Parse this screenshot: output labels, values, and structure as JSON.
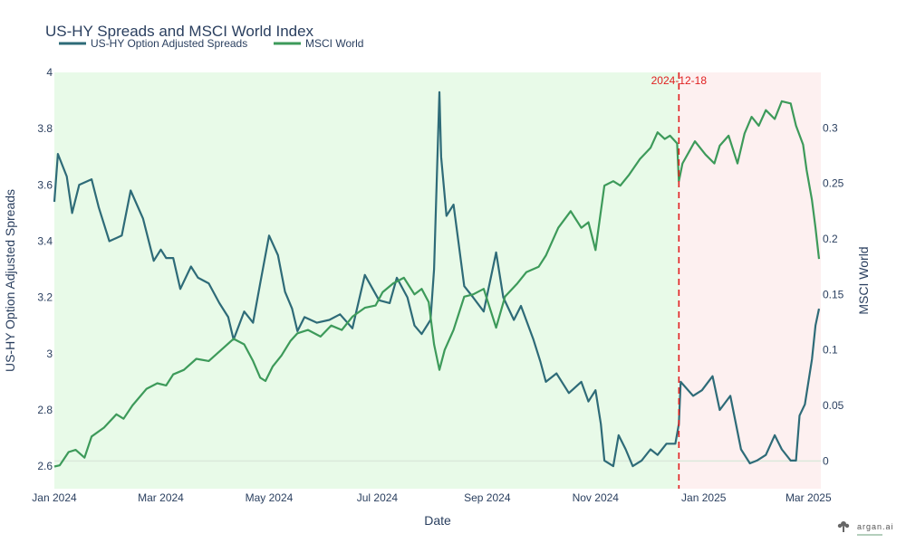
{
  "chart_data": {
    "type": "line",
    "title": "US-HY Spreads and MSCI World Index",
    "xlabel": "Date",
    "ylabel_left": "US-HY Option Adjusted Spreads",
    "ylabel_right": "MSCI World",
    "x_range": [
      "2024-01-01",
      "2025-03-08"
    ],
    "y_left_range": [
      2.52,
      4.0
    ],
    "y_right_range": [
      -0.025,
      0.35
    ],
    "x_ticks": [
      {
        "label": "Jan 2024",
        "date": "2024-01-01"
      },
      {
        "label": "Mar 2024",
        "date": "2024-03-01"
      },
      {
        "label": "May 2024",
        "date": "2024-05-01"
      },
      {
        "label": "Jul 2024",
        "date": "2024-07-01"
      },
      {
        "label": "Sep 2024",
        "date": "2024-09-01"
      },
      {
        "label": "Nov 2024",
        "date": "2024-11-01"
      },
      {
        "label": "Jan 2025",
        "date": "2025-01-01"
      },
      {
        "label": "Mar 2025",
        "date": "2025-03-01"
      }
    ],
    "y_left_ticks": [
      "2.6",
      "2.8",
      "3",
      "3.2",
      "3.4",
      "3.6",
      "3.8",
      "4"
    ],
    "y_right_ticks": [
      "0",
      "0.05",
      "0.1",
      "0.15",
      "0.2",
      "0.25",
      "0.3"
    ],
    "legend": "top-left, horizontal",
    "regions": [
      {
        "from": "2024-01-01",
        "to": "2024-12-18",
        "color": "#e8fae8"
      },
      {
        "from": "2024-12-18",
        "to": "2025-03-08",
        "color": "#fdf0f0"
      }
    ],
    "annotations": [
      {
        "date": "2024-12-18",
        "label": "2024-12-18",
        "style": "dashed",
        "color": "#e02020"
      }
    ],
    "series": [
      {
        "name": "US-HY Option Adjusted Spreads",
        "axis": "left",
        "color": "#2e6b78",
        "points": [
          [
            "2024-01-01",
            3.54
          ],
          [
            "2024-01-03",
            3.71
          ],
          [
            "2024-01-08",
            3.63
          ],
          [
            "2024-01-11",
            3.5
          ],
          [
            "2024-01-15",
            3.6
          ],
          [
            "2024-01-22",
            3.62
          ],
          [
            "2024-01-26",
            3.52
          ],
          [
            "2024-02-01",
            3.4
          ],
          [
            "2024-02-08",
            3.42
          ],
          [
            "2024-02-13",
            3.58
          ],
          [
            "2024-02-20",
            3.48
          ],
          [
            "2024-02-26",
            3.33
          ],
          [
            "2024-03-01",
            3.37
          ],
          [
            "2024-03-04",
            3.34
          ],
          [
            "2024-03-08",
            3.34
          ],
          [
            "2024-03-12",
            3.23
          ],
          [
            "2024-03-18",
            3.31
          ],
          [
            "2024-03-22",
            3.27
          ],
          [
            "2024-03-28",
            3.25
          ],
          [
            "2024-04-03",
            3.18
          ],
          [
            "2024-04-08",
            3.13
          ],
          [
            "2024-04-11",
            3.05
          ],
          [
            "2024-04-17",
            3.15
          ],
          [
            "2024-04-22",
            3.11
          ],
          [
            "2024-04-26",
            3.25
          ],
          [
            "2024-05-01",
            3.42
          ],
          [
            "2024-05-06",
            3.35
          ],
          [
            "2024-05-10",
            3.22
          ],
          [
            "2024-05-14",
            3.16
          ],
          [
            "2024-05-17",
            3.08
          ],
          [
            "2024-05-21",
            3.13
          ],
          [
            "2024-05-28",
            3.11
          ],
          [
            "2024-06-04",
            3.12
          ],
          [
            "2024-06-10",
            3.14
          ],
          [
            "2024-06-17",
            3.09
          ],
          [
            "2024-06-24",
            3.28
          ],
          [
            "2024-07-02",
            3.19
          ],
          [
            "2024-07-08",
            3.18
          ],
          [
            "2024-07-12",
            3.27
          ],
          [
            "2024-07-18",
            3.2
          ],
          [
            "2024-07-22",
            3.1
          ],
          [
            "2024-07-26",
            3.07
          ],
          [
            "2024-07-31",
            3.12
          ],
          [
            "2024-08-02",
            3.3
          ],
          [
            "2024-08-05",
            3.93
          ],
          [
            "2024-08-06",
            3.7
          ],
          [
            "2024-08-09",
            3.49
          ],
          [
            "2024-08-13",
            3.53
          ],
          [
            "2024-08-19",
            3.24
          ],
          [
            "2024-08-24",
            3.2
          ],
          [
            "2024-08-30",
            3.15
          ],
          [
            "2024-09-06",
            3.36
          ],
          [
            "2024-09-10",
            3.2
          ],
          [
            "2024-09-16",
            3.12
          ],
          [
            "2024-09-20",
            3.17
          ],
          [
            "2024-09-27",
            3.05
          ],
          [
            "2024-10-01",
            2.97
          ],
          [
            "2024-10-04",
            2.9
          ],
          [
            "2024-10-10",
            2.93
          ],
          [
            "2024-10-17",
            2.86
          ],
          [
            "2024-10-24",
            2.9
          ],
          [
            "2024-10-28",
            2.83
          ],
          [
            "2024-11-01",
            2.87
          ],
          [
            "2024-11-04",
            2.75
          ],
          [
            "2024-11-06",
            2.62
          ],
          [
            "2024-11-11",
            2.6
          ],
          [
            "2024-11-14",
            2.71
          ],
          [
            "2024-11-18",
            2.66
          ],
          [
            "2024-11-22",
            2.6
          ],
          [
            "2024-11-27",
            2.62
          ],
          [
            "2024-12-02",
            2.66
          ],
          [
            "2024-12-06",
            2.64
          ],
          [
            "2024-12-11",
            2.68
          ],
          [
            "2024-12-16",
            2.68
          ],
          [
            "2024-12-18",
            2.75
          ],
          [
            "2024-12-19",
            2.9
          ],
          [
            "2024-12-26",
            2.85
          ],
          [
            "2024-12-31",
            2.87
          ],
          [
            "2025-01-06",
            2.92
          ],
          [
            "2025-01-10",
            2.8
          ],
          [
            "2025-01-16",
            2.85
          ],
          [
            "2025-01-22",
            2.66
          ],
          [
            "2025-01-27",
            2.61
          ],
          [
            "2025-01-31",
            2.62
          ],
          [
            "2025-02-05",
            2.64
          ],
          [
            "2025-02-10",
            2.71
          ],
          [
            "2025-02-14",
            2.66
          ],
          [
            "2025-02-19",
            2.62
          ],
          [
            "2025-02-22",
            2.62
          ],
          [
            "2025-02-24",
            2.78
          ],
          [
            "2025-02-27",
            2.82
          ],
          [
            "2025-03-03",
            2.98
          ],
          [
            "2025-03-05",
            3.1
          ],
          [
            "2025-03-07",
            3.16
          ]
        ]
      },
      {
        "name": "MSCI World",
        "axis": "right",
        "color": "#3d9a5a",
        "points": [
          [
            "2024-01-01",
            -0.005
          ],
          [
            "2024-01-04",
            -0.004
          ],
          [
            "2024-01-09",
            0.008
          ],
          [
            "2024-01-13",
            0.01
          ],
          [
            "2024-01-18",
            0.003
          ],
          [
            "2024-01-22",
            0.022
          ],
          [
            "2024-01-29",
            0.03
          ],
          [
            "2024-02-05",
            0.042
          ],
          [
            "2024-02-09",
            0.038
          ],
          [
            "2024-02-14",
            0.05
          ],
          [
            "2024-02-22",
            0.065
          ],
          [
            "2024-02-28",
            0.07
          ],
          [
            "2024-03-04",
            0.068
          ],
          [
            "2024-03-08",
            0.078
          ],
          [
            "2024-03-14",
            0.082
          ],
          [
            "2024-03-21",
            0.092
          ],
          [
            "2024-03-28",
            0.09
          ],
          [
            "2024-04-04",
            0.1
          ],
          [
            "2024-04-11",
            0.11
          ],
          [
            "2024-04-17",
            0.105
          ],
          [
            "2024-04-22",
            0.09
          ],
          [
            "2024-04-26",
            0.075
          ],
          [
            "2024-04-29",
            0.072
          ],
          [
            "2024-05-03",
            0.085
          ],
          [
            "2024-05-08",
            0.095
          ],
          [
            "2024-05-13",
            0.108
          ],
          [
            "2024-05-17",
            0.115
          ],
          [
            "2024-05-23",
            0.118
          ],
          [
            "2024-05-30",
            0.112
          ],
          [
            "2024-06-05",
            0.122
          ],
          [
            "2024-06-11",
            0.118
          ],
          [
            "2024-06-17",
            0.13
          ],
          [
            "2024-06-24",
            0.138
          ],
          [
            "2024-06-30",
            0.14
          ],
          [
            "2024-07-04",
            0.152
          ],
          [
            "2024-07-10",
            0.16
          ],
          [
            "2024-07-16",
            0.165
          ],
          [
            "2024-07-22",
            0.15
          ],
          [
            "2024-07-26",
            0.155
          ],
          [
            "2024-07-30",
            0.143
          ],
          [
            "2024-08-02",
            0.105
          ],
          [
            "2024-08-05",
            0.082
          ],
          [
            "2024-08-08",
            0.1
          ],
          [
            "2024-08-13",
            0.118
          ],
          [
            "2024-08-19",
            0.148
          ],
          [
            "2024-08-24",
            0.15
          ],
          [
            "2024-08-30",
            0.155
          ],
          [
            "2024-09-06",
            0.12
          ],
          [
            "2024-09-11",
            0.148
          ],
          [
            "2024-09-18",
            0.16
          ],
          [
            "2024-09-23",
            0.17
          ],
          [
            "2024-09-30",
            0.175
          ],
          [
            "2024-10-04",
            0.185
          ],
          [
            "2024-10-11",
            0.21
          ],
          [
            "2024-10-18",
            0.225
          ],
          [
            "2024-10-24",
            0.21
          ],
          [
            "2024-10-28",
            0.215
          ],
          [
            "2024-11-01",
            0.19
          ],
          [
            "2024-11-06",
            0.248
          ],
          [
            "2024-11-11",
            0.252
          ],
          [
            "2024-11-15",
            0.248
          ],
          [
            "2024-11-20",
            0.258
          ],
          [
            "2024-11-26",
            0.272
          ],
          [
            "2024-12-02",
            0.282
          ],
          [
            "2024-12-06",
            0.296
          ],
          [
            "2024-12-10",
            0.29
          ],
          [
            "2024-12-13",
            0.293
          ],
          [
            "2024-12-17",
            0.286
          ],
          [
            "2024-12-18",
            0.252
          ],
          [
            "2024-12-20",
            0.268
          ],
          [
            "2024-12-27",
            0.288
          ],
          [
            "2025-01-02",
            0.276
          ],
          [
            "2025-01-07",
            0.268
          ],
          [
            "2025-01-10",
            0.284
          ],
          [
            "2025-01-15",
            0.293
          ],
          [
            "2025-01-20",
            0.268
          ],
          [
            "2025-01-24",
            0.295
          ],
          [
            "2025-01-28",
            0.31
          ],
          [
            "2025-02-01",
            0.302
          ],
          [
            "2025-02-05",
            0.316
          ],
          [
            "2025-02-10",
            0.308
          ],
          [
            "2025-02-14",
            0.324
          ],
          [
            "2025-02-19",
            0.322
          ],
          [
            "2025-02-22",
            0.302
          ],
          [
            "2025-02-26",
            0.285
          ],
          [
            "2025-02-28",
            0.262
          ],
          [
            "2025-03-03",
            0.235
          ],
          [
            "2025-03-05",
            0.21
          ],
          [
            "2025-03-07",
            0.182
          ]
        ]
      }
    ]
  },
  "branding": {
    "logo_text": "argan.ai",
    "logo_icon": "tree-icon"
  }
}
